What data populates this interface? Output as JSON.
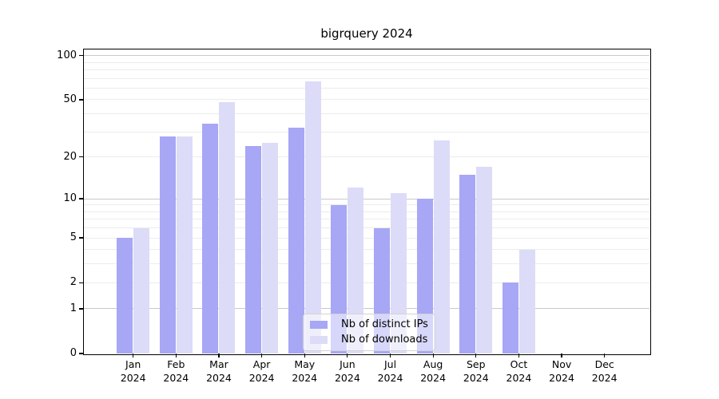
{
  "title": "bigrquery 2024",
  "chart_data": {
    "type": "bar",
    "title": "bigrquery 2024",
    "categories": [
      "Jan 2024",
      "Feb 2024",
      "Mar 2024",
      "Apr 2024",
      "May 2024",
      "Jun 2024",
      "Jul 2024",
      "Aug 2024",
      "Sep 2024",
      "Oct 2024",
      "Nov 2024",
      "Dec 2024"
    ],
    "series": [
      {
        "name": "Nb of distinct IPs",
        "color": "#a7a7f6",
        "values": [
          5,
          28,
          34,
          24,
          32,
          9,
          6,
          10,
          15,
          2,
          0,
          0
        ]
      },
      {
        "name": "Nb of downloads",
        "color": "#dcdcf8",
        "values": [
          6,
          28,
          48,
          25,
          67,
          12,
          11,
          26,
          17,
          4,
          0,
          0
        ]
      }
    ],
    "xlabel": "",
    "ylabel": "",
    "yscale": "log1p",
    "ylim": [
      0,
      110
    ],
    "ytick_labels": [
      0,
      1,
      2,
      5,
      10,
      20,
      50,
      100
    ],
    "grid": {
      "major": [
        1,
        10,
        100
      ],
      "minor": [
        2,
        3,
        4,
        5,
        6,
        7,
        8,
        9,
        20,
        30,
        40,
        50,
        60,
        70,
        80,
        90
      ]
    },
    "legend_position": "lower center",
    "colors": {
      "major_grid": "#c9c9c9",
      "minor_grid": "#ececec",
      "axis": "#000000"
    }
  }
}
